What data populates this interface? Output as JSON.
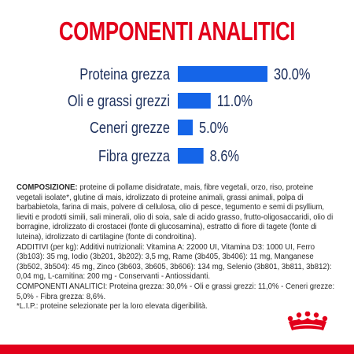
{
  "chart_data": {
    "type": "bar",
    "orientation": "horizontal",
    "title": "COMPONENTI ANALITICI",
    "categories": [
      "Proteina grezza",
      "Oli e grassi grezzi",
      "Ceneri grezze",
      "Fibra grezza"
    ],
    "values": [
      30.0,
      11.0,
      5.0,
      8.6
    ],
    "value_labels": [
      "30.0%",
      "11.0%",
      "5.0%",
      "8.6%"
    ],
    "xlim": [
      0,
      30
    ],
    "bar_color": "#1565e8",
    "label_color": "#1c2f5c",
    "grid": false,
    "legend": "none"
  },
  "composition": {
    "heading": "COMPOSIZIONE:",
    "body": " proteine di pollame disidratate, mais, fibre vegetali, orzo, riso, proteine vegetali isolate*, glutine di mais, idrolizzato di proteine animali, grassi animali, polpa di barbabietola, farina di mais, polvere di cellulosa, olio di pesce, tegumento e semi di psyllium, lieviti e prodotti simili, sali minerali, olio di soia, sale di acido grasso, frutto-oligosaccaridi, olio di borragine, idrolizzato di crostacei (fonte di glucosamina), estratto di fiore di tagete (fonte di luteina), idrolizzato di cartilagine (fonte di condroitina).",
    "additives": "ADDITIVI (per kg): Additivi nutrizionali: Vitamina A: 22000 UI, Vitamina D3: 1000 UI, Ferro (3b103): 35 mg, Iodio (3b201, 3b202): 3,5 mg, Rame (3b405, 3b406): 11 mg, Manganese (3b502, 3b504): 45 mg, Zinco (3b603, 3b605, 3b606): 134 mg, Selenio (3b801, 3b811, 3b812): 0,04 mg, L-carnitina: 200 mg - Conservanti - Antiossidanti.",
    "analytical": "COMPONENTI ANALITICI: Proteina grezza: 30,0% - Oli e grassi grezzi: 11,0% - Ceneri grezze: 5,0% - Fibra grezza: 8,6%.",
    "footnote": "*L.I.P.: proteine selezionate per la loro elevata digeribilità."
  },
  "brand_color": "#e2001a",
  "logo_icon": "crown-icon"
}
